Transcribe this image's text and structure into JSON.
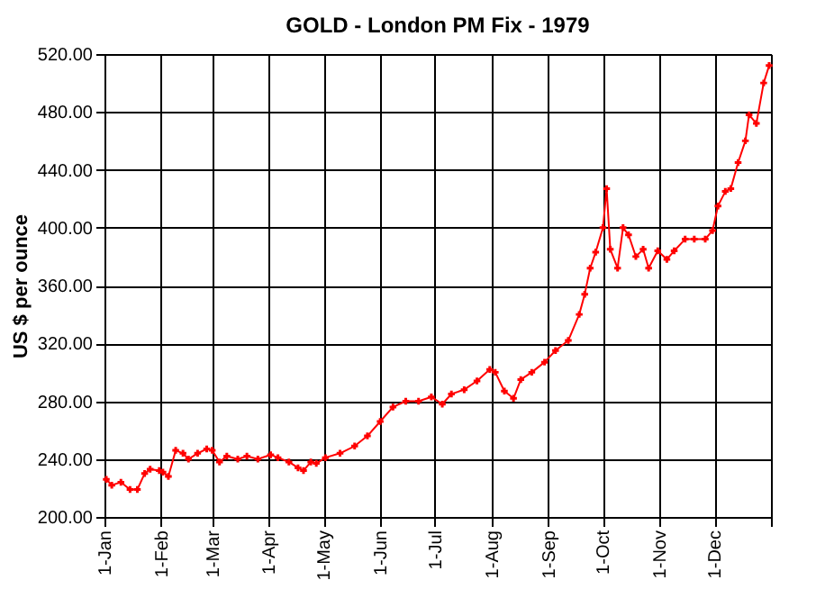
{
  "chart_data": {
    "type": "line",
    "title": "GOLD - London PM Fix - 1979",
    "ylabel": "US $ per ounce",
    "x": [
      "1979-01-02",
      "1979-01-05",
      "1979-01-10",
      "1979-01-15",
      "1979-01-19",
      "1979-01-23",
      "1979-01-26",
      "1979-01-31",
      "1979-02-02",
      "1979-02-05",
      "1979-02-09",
      "1979-02-13",
      "1979-02-16",
      "1979-02-21",
      "1979-02-26",
      "1979-03-01",
      "1979-03-05",
      "1979-03-09",
      "1979-03-15",
      "1979-03-20",
      "1979-03-26",
      "1979-04-02",
      "1979-04-06",
      "1979-04-12",
      "1979-04-17",
      "1979-04-20",
      "1979-04-24",
      "1979-04-27",
      "1979-05-02",
      "1979-05-10",
      "1979-05-18",
      "1979-05-25",
      "1979-06-01",
      "1979-06-08",
      "1979-06-15",
      "1979-06-22",
      "1979-06-29",
      "1979-07-05",
      "1979-07-10",
      "1979-07-17",
      "1979-07-24",
      "1979-07-31",
      "1979-08-03",
      "1979-08-08",
      "1979-08-13",
      "1979-08-17",
      "1979-08-23",
      "1979-08-30",
      "1979-09-05",
      "1979-09-12",
      "1979-09-18",
      "1979-09-21",
      "1979-09-24",
      "1979-09-27",
      "1979-10-01",
      "1979-10-03",
      "1979-10-05",
      "1979-10-09",
      "1979-10-12",
      "1979-10-15",
      "1979-10-19",
      "1979-10-23",
      "1979-10-26",
      "1979-10-31",
      "1979-11-05",
      "1979-11-09",
      "1979-11-15",
      "1979-11-20",
      "1979-11-26",
      "1979-11-30",
      "1979-12-03",
      "1979-12-07",
      "1979-12-10",
      "1979-12-14",
      "1979-12-18",
      "1979-12-20",
      "1979-12-24",
      "1979-12-28",
      "1979-12-31"
    ],
    "series": [
      {
        "color": "#ff0000",
        "values": [
          226,
          222,
          224,
          219,
          219,
          230,
          233,
          232,
          231,
          228,
          246,
          244,
          240,
          244,
          247,
          246,
          238,
          242,
          240,
          242,
          240,
          243,
          241,
          238,
          234,
          232,
          238,
          237,
          241,
          244,
          249,
          256,
          266,
          276,
          280,
          280,
          283,
          278,
          285,
          288,
          294,
          302,
          300,
          287,
          282,
          295,
          300,
          307,
          315,
          322,
          340,
          354,
          372,
          383,
          400,
          427,
          385,
          372,
          400,
          395,
          380,
          385,
          372,
          384,
          378,
          384,
          392,
          392,
          392,
          398,
          415,
          425,
          427,
          445,
          460,
          478,
          472,
          500,
          512
        ]
      }
    ],
    "xlim": [
      "1979-01-01",
      "1980-01-01"
    ],
    "xticks": [
      {
        "value": "1979-01-01",
        "label": "1-Jan"
      },
      {
        "value": "1979-02-01",
        "label": "1-Feb"
      },
      {
        "value": "1979-03-01",
        "label": "1-Mar"
      },
      {
        "value": "1979-04-01",
        "label": "1-Apr"
      },
      {
        "value": "1979-05-01",
        "label": "1-May"
      },
      {
        "value": "1979-06-01",
        "label": "1-Jun"
      },
      {
        "value": "1979-07-01",
        "label": "1-Jul"
      },
      {
        "value": "1979-08-01",
        "label": "1-Aug"
      },
      {
        "value": "1979-09-01",
        "label": "1-Sep"
      },
      {
        "value": "1979-10-01",
        "label": "1-Oct"
      },
      {
        "value": "1979-11-01",
        "label": "1-Nov"
      },
      {
        "value": "1979-12-01",
        "label": "1-Dec"
      },
      {
        "value": "1980-01-01",
        "label": null
      }
    ],
    "ylim": [
      200,
      520
    ],
    "yticks": [
      {
        "value": 200,
        "label": "200.00"
      },
      {
        "value": 240,
        "label": "240.00"
      },
      {
        "value": 280,
        "label": "280.00"
      },
      {
        "value": 320,
        "label": "320.00"
      },
      {
        "value": 360,
        "label": "360.00"
      },
      {
        "value": 400,
        "label": "400.00"
      },
      {
        "value": 440,
        "label": "440.00"
      },
      {
        "value": 480,
        "label": "480.00"
      },
      {
        "value": 520,
        "label": "520.00"
      }
    ],
    "grid": true,
    "marker": "cross",
    "line_style": "solid",
    "legend": false
  }
}
